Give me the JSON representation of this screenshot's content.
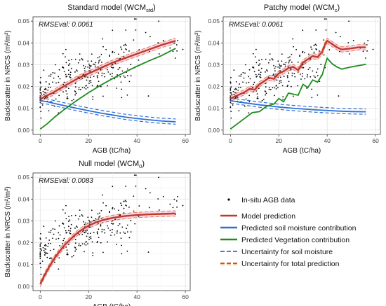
{
  "chart_data": [
    {
      "type": "scatter",
      "title": "Standard model (WCM",
      "title_sub": "std",
      "title_end": ")",
      "annotation": "RMSEval: 0.0061",
      "xlabel": "AGB (tC/ha)",
      "ylabel": "Backscatter in NRCS (m²/m²)",
      "xlim": [
        -3,
        62
      ],
      "ylim": [
        -0.002,
        0.052
      ],
      "xticks": [
        "0",
        "20",
        "40",
        "60"
      ],
      "yticks": [
        "0.00",
        "0.01",
        "0.02",
        "0.03",
        "0.04",
        "0.05"
      ],
      "grid": true,
      "series": [
        {
          "kind": "model",
          "color": "#c0392b",
          "x": [
            0,
            2,
            5,
            8,
            12,
            16,
            20,
            25,
            30,
            35,
            40,
            45,
            50,
            56
          ],
          "y": [
            0.014,
            0.0155,
            0.017,
            0.019,
            0.0215,
            0.024,
            0.026,
            0.0285,
            0.031,
            0.033,
            0.035,
            0.037,
            0.039,
            0.041
          ]
        },
        {
          "kind": "soil",
          "color": "#2e6fd6",
          "x": [
            0,
            3,
            6,
            10,
            15,
            20,
            25,
            30,
            35,
            40,
            45,
            50,
            56
          ],
          "y": [
            0.0135,
            0.013,
            0.0122,
            0.0112,
            0.01,
            0.0089,
            0.0078,
            0.0069,
            0.006,
            0.0053,
            0.0047,
            0.0042,
            0.0038
          ]
        },
        {
          "kind": "vegetation",
          "color": "#1e8c1e",
          "x": [
            0,
            3,
            6,
            10,
            15,
            20,
            25,
            30,
            35,
            40,
            45,
            50,
            56
          ],
          "y": [
            0.0005,
            0.003,
            0.006,
            0.0095,
            0.0135,
            0.0172,
            0.0206,
            0.0237,
            0.0266,
            0.0293,
            0.0318,
            0.0341,
            0.0375
          ]
        }
      ]
    },
    {
      "type": "scatter",
      "title": "Patchy model (WCM",
      "title_sub": "c",
      "title_end": ")",
      "annotation": "RMSEval: 0.0061",
      "xlabel": "AGB (tC/ha)",
      "ylabel": "Backscatter in NRCS (m²/m²)",
      "xlim": [
        -3,
        62
      ],
      "ylim": [
        -0.002,
        0.052
      ],
      "xticks": [
        "0",
        "20",
        "40",
        "60"
      ],
      "yticks": [
        "0.00",
        "0.01",
        "0.02",
        "0.03",
        "0.04",
        "0.05"
      ],
      "grid": true,
      "series": [
        {
          "kind": "model",
          "color": "#c0392b",
          "x": [
            0,
            2,
            4,
            6,
            8,
            10,
            12,
            14,
            16,
            18,
            20,
            22,
            24,
            26,
            28,
            30,
            32,
            34,
            36,
            38,
            39,
            40,
            42,
            44,
            46,
            50,
            53,
            56
          ],
          "y": [
            0.0145,
            0.0155,
            0.0165,
            0.0175,
            0.019,
            0.0185,
            0.021,
            0.0225,
            0.024,
            0.0235,
            0.026,
            0.027,
            0.0285,
            0.029,
            0.0275,
            0.031,
            0.0325,
            0.034,
            0.0335,
            0.036,
            0.039,
            0.041,
            0.0395,
            0.038,
            0.037,
            0.0375,
            0.038,
            0.038
          ]
        },
        {
          "kind": "soil",
          "color": "#2e6fd6",
          "x": [
            0,
            4,
            8,
            12,
            16,
            20,
            25,
            30,
            35,
            40,
            45,
            50,
            56
          ],
          "y": [
            0.0135,
            0.0128,
            0.0122,
            0.0116,
            0.0111,
            0.0106,
            0.0101,
            0.0097,
            0.0093,
            0.009,
            0.0087,
            0.0085,
            0.0084
          ]
        },
        {
          "kind": "vegetation",
          "color": "#1e8c1e",
          "x": [
            0,
            3,
            6,
            9,
            12,
            15,
            18,
            20,
            22,
            24,
            26,
            28,
            30,
            32,
            34,
            36,
            38,
            39,
            40,
            42,
            44,
            46,
            50,
            56
          ],
          "y": [
            0.0005,
            0.003,
            0.0055,
            0.008,
            0.0085,
            0.011,
            0.012,
            0.0145,
            0.013,
            0.017,
            0.0165,
            0.016,
            0.021,
            0.0195,
            0.023,
            0.022,
            0.0255,
            0.0295,
            0.033,
            0.0305,
            0.029,
            0.028,
            0.029,
            0.0302
          ]
        }
      ]
    },
    {
      "type": "scatter",
      "title": "Null model (WCM",
      "title_sub": "0",
      "title_end": ")",
      "annotation": "RMSEval: 0.0083",
      "xlabel": "AGB (tC/ha)",
      "ylabel": "Backscatter in NRCS (m²/m²)",
      "xlim": [
        -3,
        62
      ],
      "ylim": [
        -0.002,
        0.052
      ],
      "xticks": [
        "0",
        "20",
        "40",
        "60"
      ],
      "yticks": [
        "0.00",
        "0.01",
        "0.02",
        "0.03",
        "0.04",
        "0.05"
      ],
      "grid": true,
      "series": [
        {
          "kind": "model",
          "color": "#c0392b",
          "x": [
            0,
            2,
            4,
            6,
            8,
            10,
            12,
            14,
            16,
            18,
            20,
            23,
            26,
            30,
            35,
            40,
            45,
            50,
            56
          ],
          "y": [
            0.001,
            0.0055,
            0.0095,
            0.013,
            0.016,
            0.0188,
            0.021,
            0.0232,
            0.025,
            0.0265,
            0.0278,
            0.0293,
            0.0304,
            0.0314,
            0.0322,
            0.0327,
            0.033,
            0.0332,
            0.0334
          ]
        }
      ]
    }
  ],
  "legend": {
    "items": [
      {
        "label": "In-situ AGB data",
        "kind": "points",
        "color": "#000000"
      },
      {
        "label": "Model prediction",
        "kind": "line",
        "color": "#c0392b"
      },
      {
        "label": "Predicted soil moisture contribution",
        "kind": "line",
        "color": "#2e6fd6"
      },
      {
        "label": "Predicted Vegetation contribution",
        "kind": "line",
        "color": "#1e8c1e"
      },
      {
        "label": "Uncertainty for soil moisture",
        "kind": "dashed",
        "color": "#2e6fd6"
      },
      {
        "label": "Uncertainty for total prediction",
        "kind": "dashed",
        "color": "#c0392b"
      }
    ]
  },
  "colors": {
    "model": "#c0392b",
    "soil": "#2e6fd6",
    "vegetation": "#1e8c1e",
    "uncertainty_band": "#f4a6c8",
    "points": "#000000"
  }
}
